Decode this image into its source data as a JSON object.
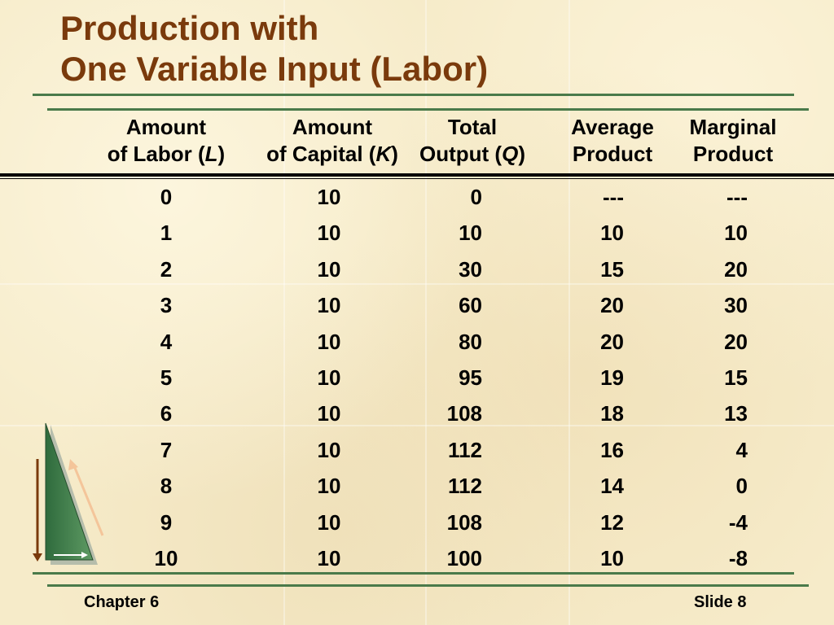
{
  "slide": {
    "title_line1": "Production with",
    "title_line2": "One Variable Input (Labor)"
  },
  "table": {
    "headers": [
      {
        "line1": "Amount",
        "line2_pre": "of Labor (",
        "line2_var": "L",
        "line2_post": ")"
      },
      {
        "line1": "Amount",
        "line2_pre": "of Capital (",
        "line2_var": "K",
        "line2_post": ")"
      },
      {
        "line1": "Total",
        "line2_pre": "Output (",
        "line2_var": "Q",
        "line2_post": ")"
      },
      {
        "line1": "Average",
        "line2_pre": "Product",
        "line2_var": "",
        "line2_post": ""
      },
      {
        "line1": "Marginal",
        "line2_pre": "Product",
        "line2_var": "",
        "line2_post": ""
      }
    ],
    "rows": [
      [
        "0",
        "10",
        "0",
        "---",
        "---"
      ],
      [
        "1",
        "10",
        "10",
        "10",
        "10"
      ],
      [
        "2",
        "10",
        "30",
        "15",
        "20"
      ],
      [
        "3",
        "10",
        "60",
        "20",
        "30"
      ],
      [
        "4",
        "10",
        "80",
        "20",
        "20"
      ],
      [
        "5",
        "10",
        "95",
        "19",
        "15"
      ],
      [
        "6",
        "10",
        "108",
        "18",
        "13"
      ],
      [
        "7",
        "10",
        "112",
        "16",
        "4"
      ],
      [
        "8",
        "10",
        "112",
        "14",
        "0"
      ],
      [
        "9",
        "10",
        "108",
        "12",
        "-4"
      ],
      [
        "10",
        "10",
        "100",
        "10",
        "-8"
      ]
    ]
  },
  "footer": {
    "chapter": "Chapter 6",
    "slide": "Slide 8"
  },
  "colors": {
    "title": "#7a3a0c",
    "rule": "#4a7a4a",
    "background": "#f6ebc9"
  },
  "icons": {
    "nav": "slide-navigation-triangle-icon"
  }
}
